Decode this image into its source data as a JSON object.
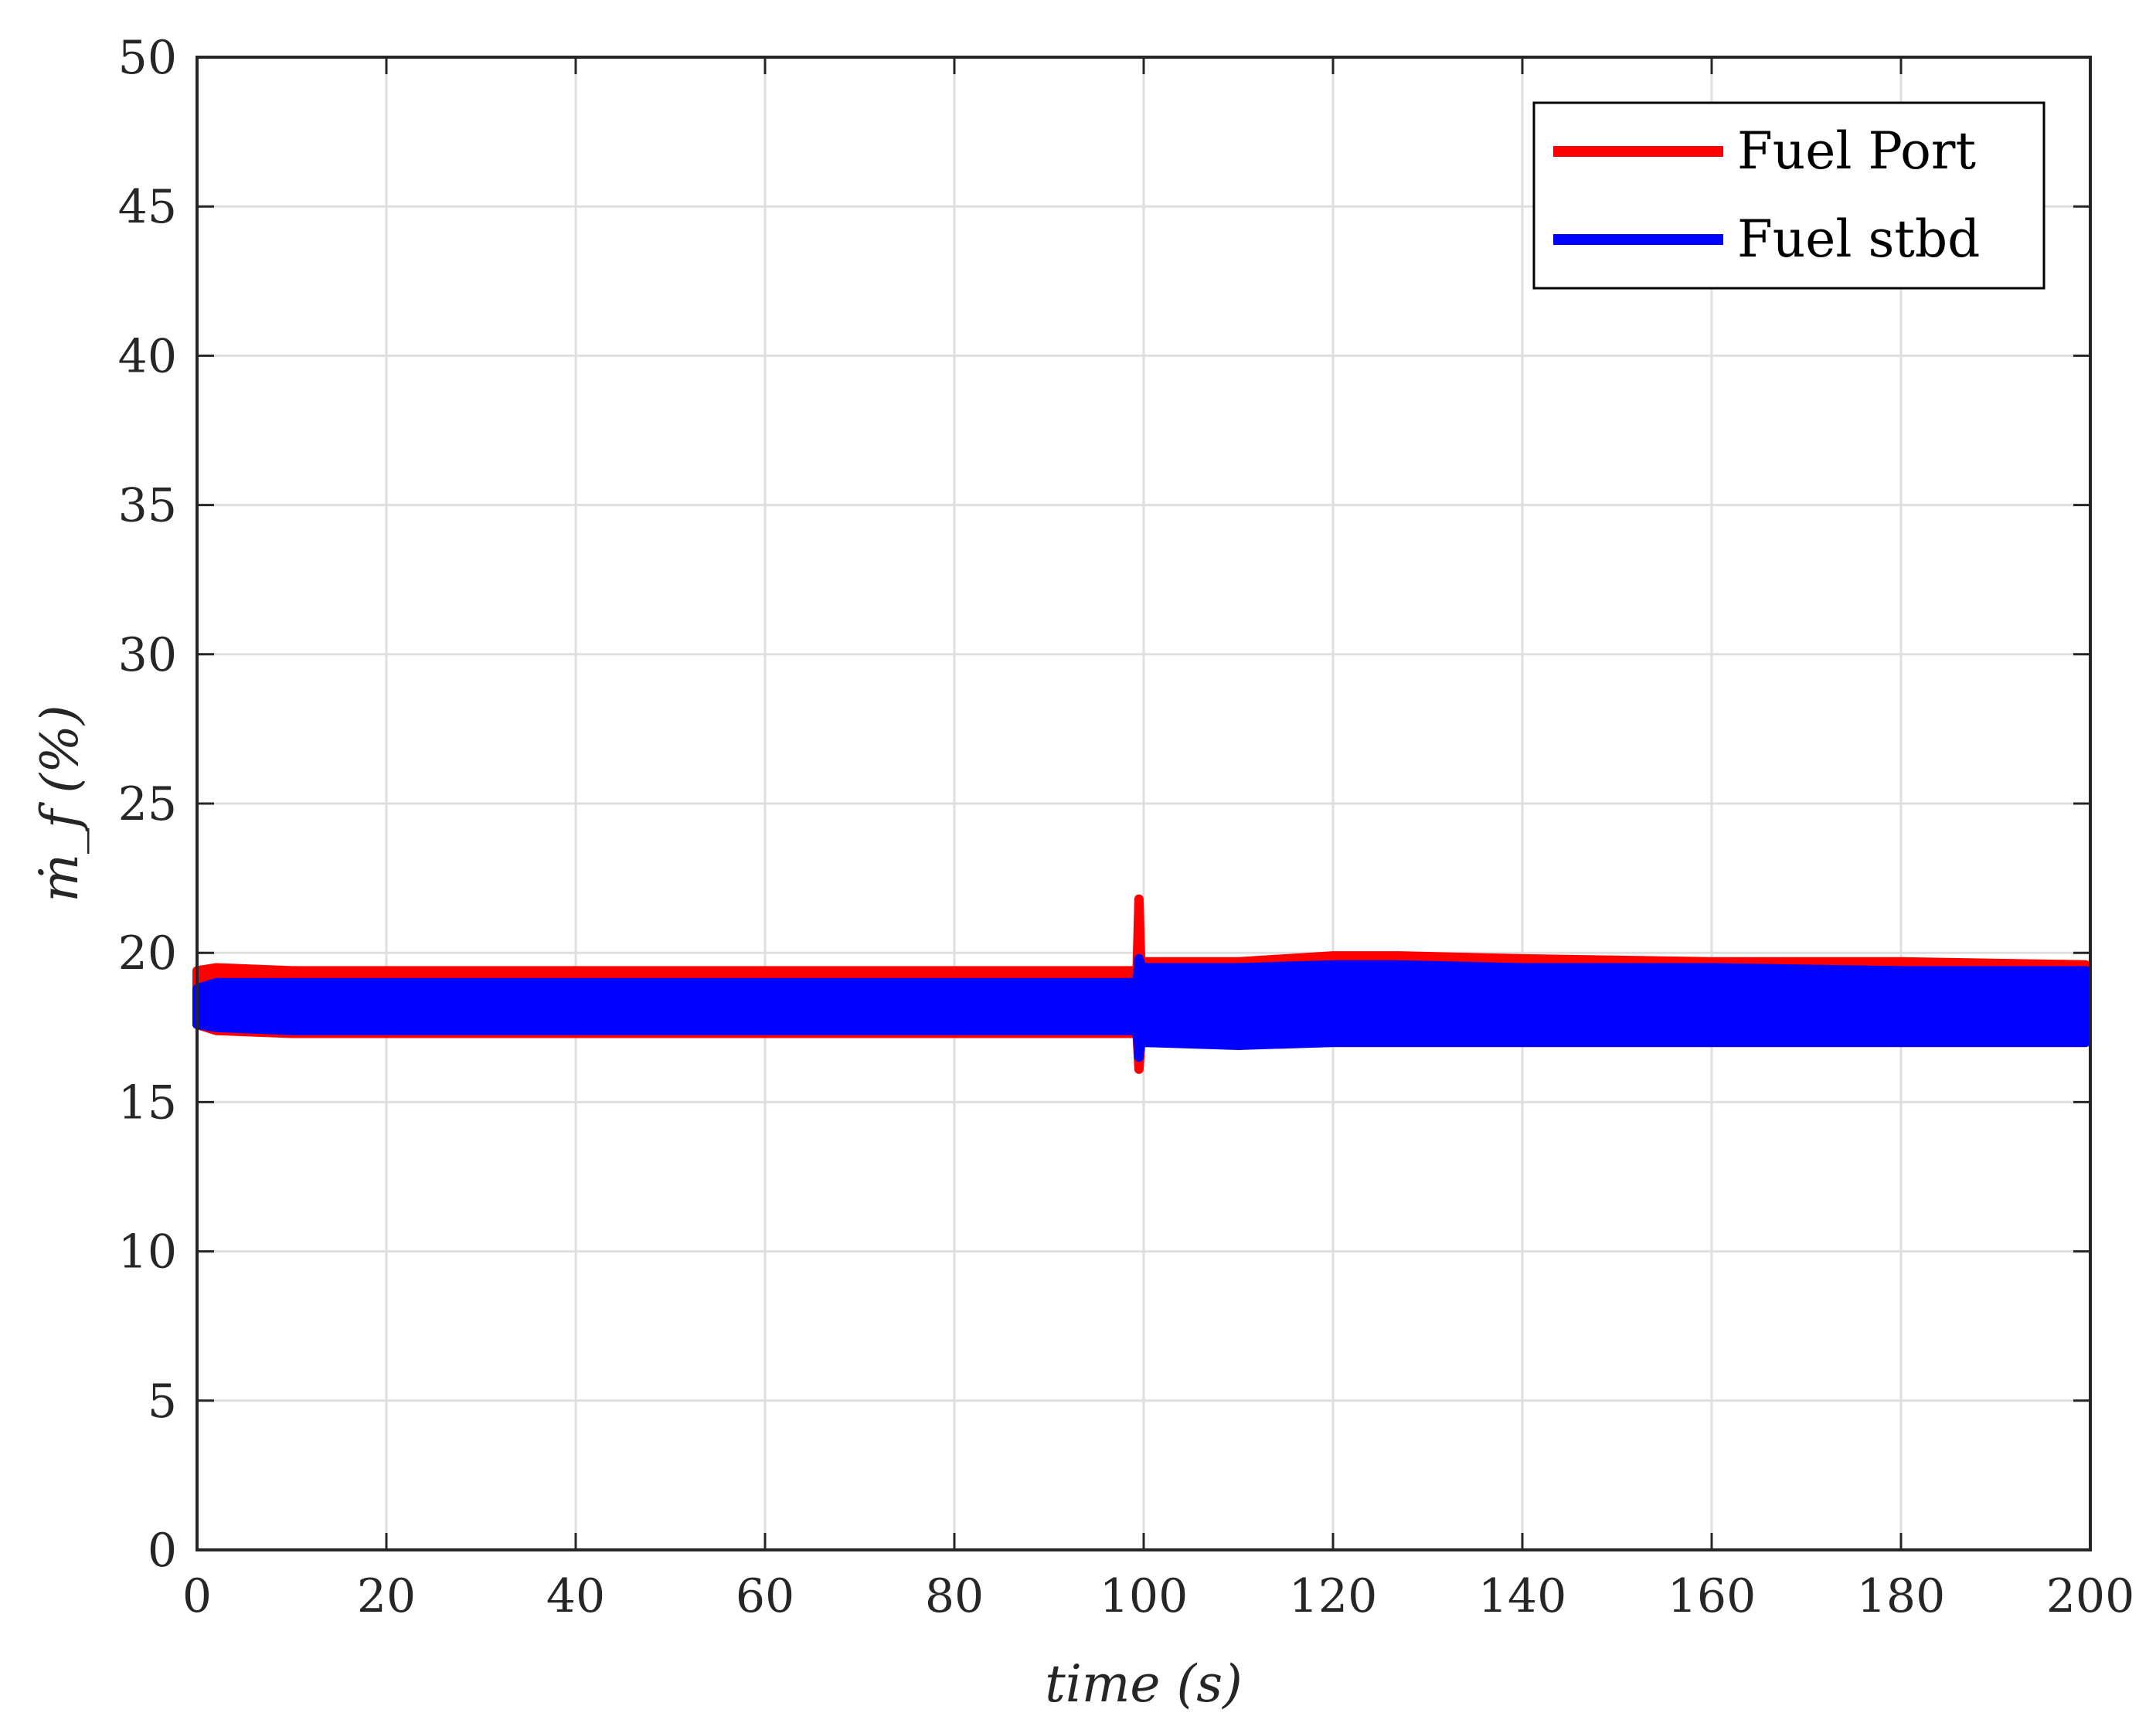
{
  "chart_data": {
    "type": "line",
    "xlabel": "time (s)",
    "ylabel": "ṁ_f (%)",
    "xlim": [
      0,
      200
    ],
    "ylim": [
      0,
      50
    ],
    "x_ticks": [
      0,
      20,
      40,
      60,
      80,
      100,
      120,
      140,
      160,
      180,
      200
    ],
    "y_ticks": [
      0,
      5,
      10,
      15,
      20,
      25,
      30,
      35,
      40,
      45,
      50
    ],
    "grid": true,
    "legend_position": "top-right",
    "series": [
      {
        "name": "Fuel Port",
        "color": "#ff0000",
        "x": [
          0,
          2,
          10,
          40,
          70,
          99.3,
          99.5,
          99.7,
          100,
          110,
          120,
          127,
          140,
          160,
          180,
          199.5
        ],
        "y_upper": [
          19.4,
          19.5,
          19.4,
          19.4,
          19.4,
          19.4,
          21.8,
          19.6,
          19.7,
          19.7,
          19.9,
          19.9,
          19.8,
          19.7,
          19.7,
          19.6
        ],
        "y_lower": [
          17.6,
          17.4,
          17.3,
          17.3,
          17.3,
          17.3,
          16.1,
          17.0,
          17.0,
          17.0,
          17.0,
          17.0,
          17.0,
          17.0,
          17.0,
          17.0
        ]
      },
      {
        "name": "Fuel stbd",
        "color": "#0000ff",
        "x": [
          0,
          2,
          10,
          40,
          70,
          99.3,
          99.5,
          99.7,
          100,
          110,
          120,
          127,
          140,
          160,
          180,
          199.5
        ],
        "y_upper": [
          18.8,
          19.0,
          19.0,
          19.0,
          19.0,
          19.0,
          19.8,
          19.6,
          19.5,
          19.5,
          19.6,
          19.6,
          19.5,
          19.5,
          19.4,
          19.4
        ],
        "y_lower": [
          17.6,
          17.5,
          17.4,
          17.4,
          17.4,
          17.4,
          16.5,
          17.0,
          17.0,
          16.9,
          17.0,
          17.0,
          17.0,
          17.0,
          17.0,
          17.0
        ]
      }
    ]
  }
}
